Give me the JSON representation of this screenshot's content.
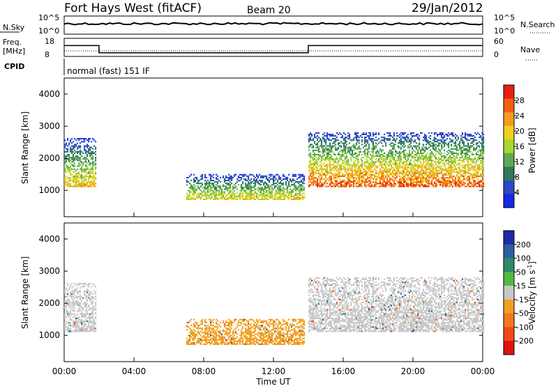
{
  "header": {
    "station": "Fort Hays West (fitACF)",
    "beam": "Beam 20",
    "date": "29/Jan/2012"
  },
  "sky_panel": {
    "left_label": "N.Sky",
    "right_label": "N.Search",
    "left_ticks": [
      "10^5",
      "10^0"
    ],
    "right_ticks": [
      "10^5",
      "10^0"
    ]
  },
  "freq_panel": {
    "left_label_1": "Freq.",
    "left_label_2": "[MHz]",
    "right_label": "Nave",
    "left_ticks": [
      "18",
      "8"
    ],
    "right_ticks": [
      "60",
      "0"
    ]
  },
  "cpid_panel": {
    "label": "CPID",
    "text": "normal (fast) 151 IF"
  },
  "x_axis": {
    "ticks": [
      "00:00",
      "04:00",
      "08:00",
      "12:00",
      "16:00",
      "20:00",
      "00:00"
    ],
    "label": "Time UT"
  },
  "y_axis": {
    "label": "Slant Range [km]",
    "ticks": [
      "1000",
      "2000",
      "3000",
      "4000"
    ]
  },
  "power_colorbar": {
    "label": "Power [dB]",
    "ticks": [
      "4",
      "8",
      "12",
      "16",
      "20",
      "24",
      "28"
    ],
    "colors": [
      "#1428e6",
      "#2d48c8",
      "#2e7a5a",
      "#5fa855",
      "#a8d830",
      "#f0d020",
      "#f59a20",
      "#f06010",
      "#e82010"
    ]
  },
  "velocity_colorbar": {
    "label": "Velocity [m s",
    "label_sup": "-1",
    "label_end": "]",
    "ticks": [
      "200",
      "100",
      "50",
      "15",
      "-15",
      "-50",
      "-100",
      "-200"
    ],
    "colors": [
      "#1e2aa8",
      "#2e5fa0",
      "#2e8a6a",
      "#55b845",
      "#c8c8c8",
      "#f0a020",
      "#f07820",
      "#f04a1a",
      "#e01010"
    ]
  },
  "chart_data": {
    "type": "heatmap",
    "x_range_hours": [
      0,
      24
    ],
    "y_range_km": [
      180,
      4500
    ],
    "panels": [
      {
        "name": "power",
        "unit": "dB",
        "range": [
          0,
          30
        ],
        "echo_regions": [
          {
            "t_start": 0.0,
            "t_end": 1.8,
            "range_low_km": 1100,
            "range_high_km": 2600,
            "peak_power_db": 22
          },
          {
            "t_start": 7.0,
            "t_end": 13.8,
            "range_low_km": 700,
            "range_high_km": 1500,
            "peak_power_db": 20
          },
          {
            "t_start": 14.0,
            "t_end": 24.0,
            "range_low_km": 1100,
            "range_high_km": 2800,
            "peak_power_db": 28
          }
        ]
      },
      {
        "name": "velocity",
        "unit": "m s-1",
        "range": [
          -200,
          200
        ],
        "echo_regions": [
          {
            "t_start": 0.0,
            "t_end": 1.8,
            "range_low_km": 1100,
            "range_high_km": 2600,
            "typical_velocity": 0
          },
          {
            "t_start": 7.0,
            "t_end": 13.8,
            "range_low_km": 700,
            "range_high_km": 1500,
            "typical_velocity": -30
          },
          {
            "t_start": 14.0,
            "t_end": 24.0,
            "range_low_km": 1100,
            "range_high_km": 2800,
            "typical_velocity": 0
          }
        ]
      }
    ],
    "frequency_mhz": [
      {
        "t_start": 0,
        "t_end": 2.0,
        "value": 14
      },
      {
        "t_start": 2.0,
        "t_end": 14.0,
        "value": 10
      },
      {
        "t_start": 14.0,
        "t_end": 24.0,
        "value": 14
      }
    ]
  }
}
